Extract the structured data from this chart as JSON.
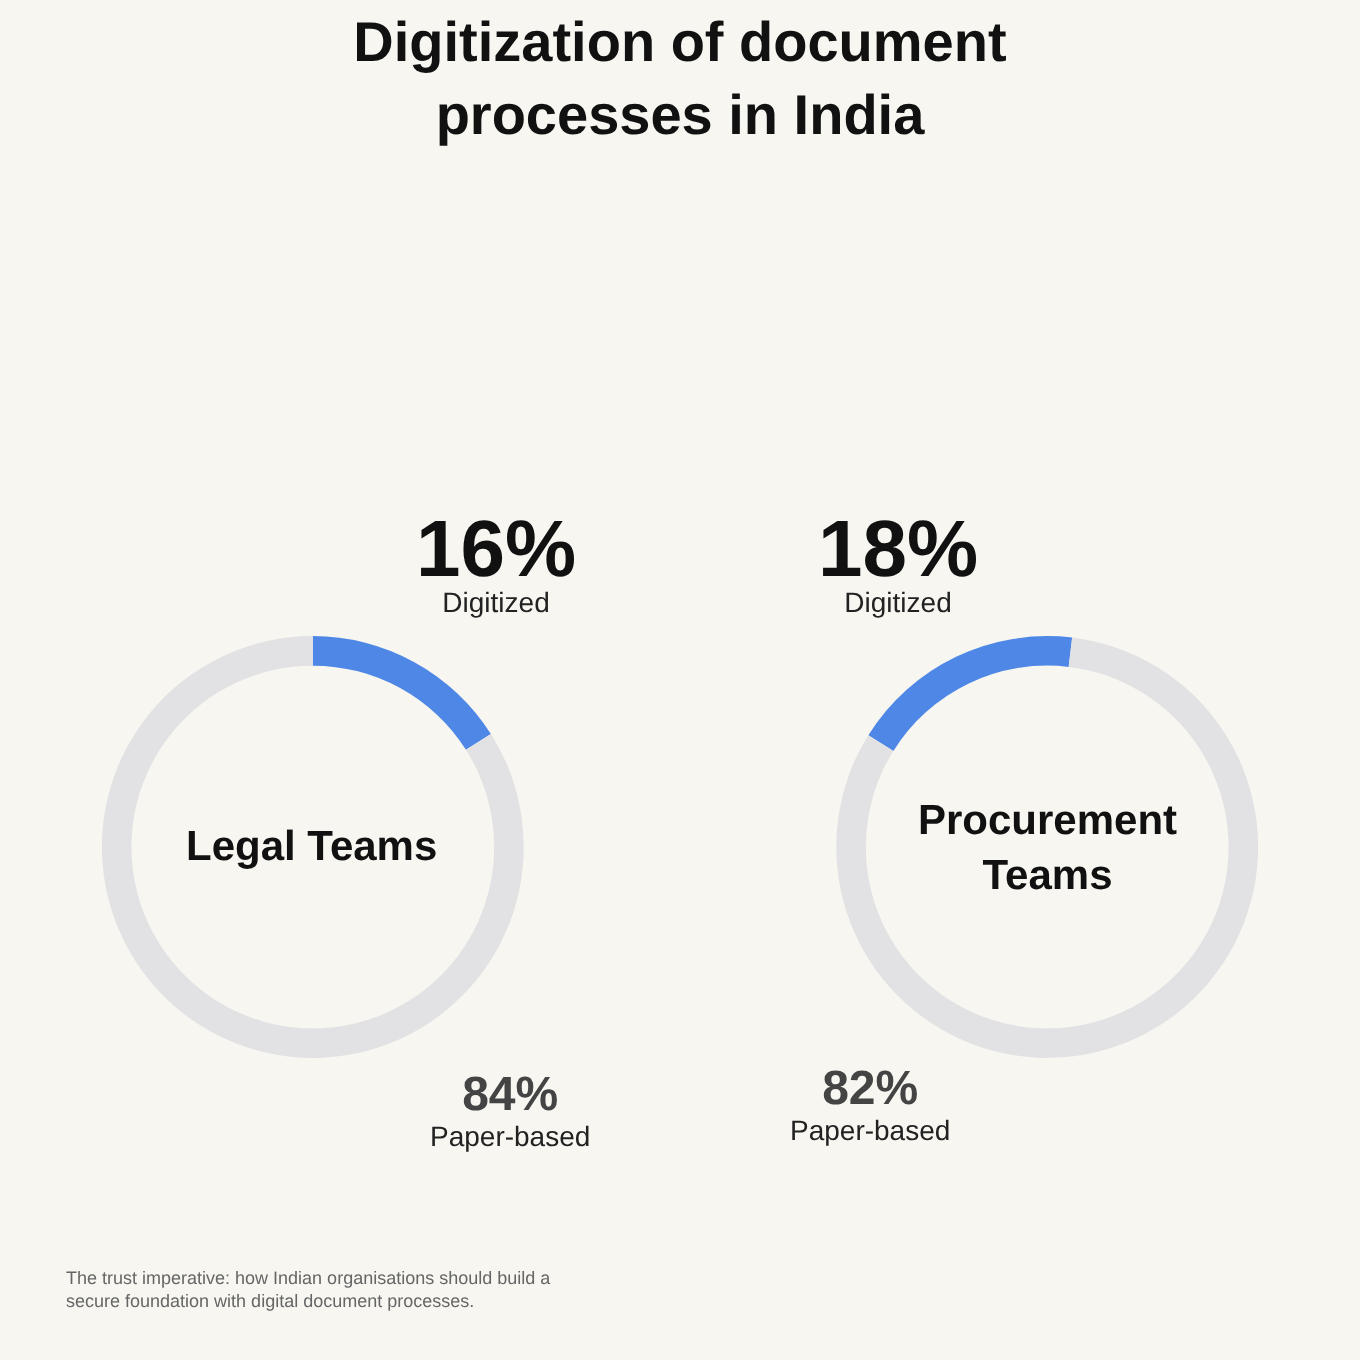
{
  "chart_data": [
    {
      "type": "donut",
      "title": "Digitization of document processes in India",
      "categories": [
        "Digitized",
        "Paper-based"
      ],
      "values": [
        16,
        84
      ],
      "value_labels": [
        "16%",
        "84%"
      ],
      "colors": [
        "#4f87e6",
        "#e2e2e4"
      ],
      "annotations": [
        "Legal Teams",
        "The trust imperative: how Indian organisations should build a secure foundation with digital document processes."
      ]
    },
    {
      "type": "donut",
      "categories": [
        "Digitized",
        "Paper-based"
      ],
      "values": [
        18,
        82
      ],
      "value_labels": [
        "18%",
        "82%"
      ],
      "colors": [
        "#4f87e6",
        "#e2e2e4"
      ],
      "annotations": [
        "Procurement Teams"
      ]
    }
  ]
}
